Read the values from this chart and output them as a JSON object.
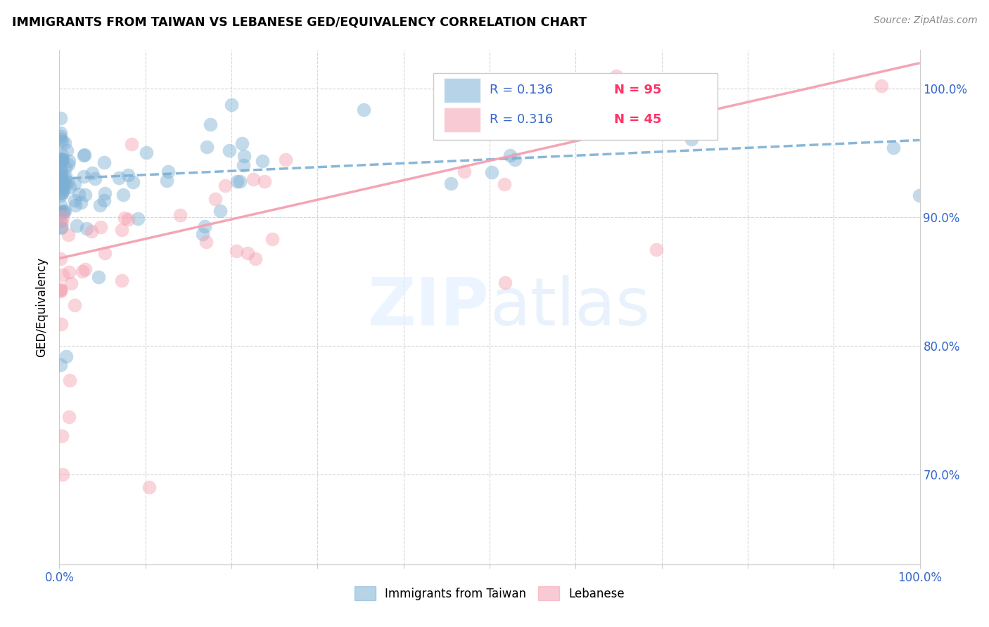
{
  "title": "IMMIGRANTS FROM TAIWAN VS LEBANESE GED/EQUIVALENCY CORRELATION CHART",
  "source": "Source: ZipAtlas.com",
  "ylabel": "GED/Equivalency",
  "xlim": [
    0.0,
    1.0
  ],
  "ylim": [
    0.63,
    1.03
  ],
  "color_taiwan": "#7BAFD4",
  "color_lebanese": "#F4A0B0",
  "color_r_value": "#3366CC",
  "color_n_value": "#FF3366",
  "taiwan_trend_x0": 0.0,
  "taiwan_trend_y0": 0.93,
  "taiwan_trend_x1": 1.0,
  "taiwan_trend_y1": 0.96,
  "lebanese_trend_x0": 0.0,
  "lebanese_trend_y0": 0.868,
  "lebanese_trend_x1": 1.0,
  "lebanese_trend_y1": 1.02,
  "watermark_zip": "ZIP",
  "watermark_atlas": "atlas"
}
